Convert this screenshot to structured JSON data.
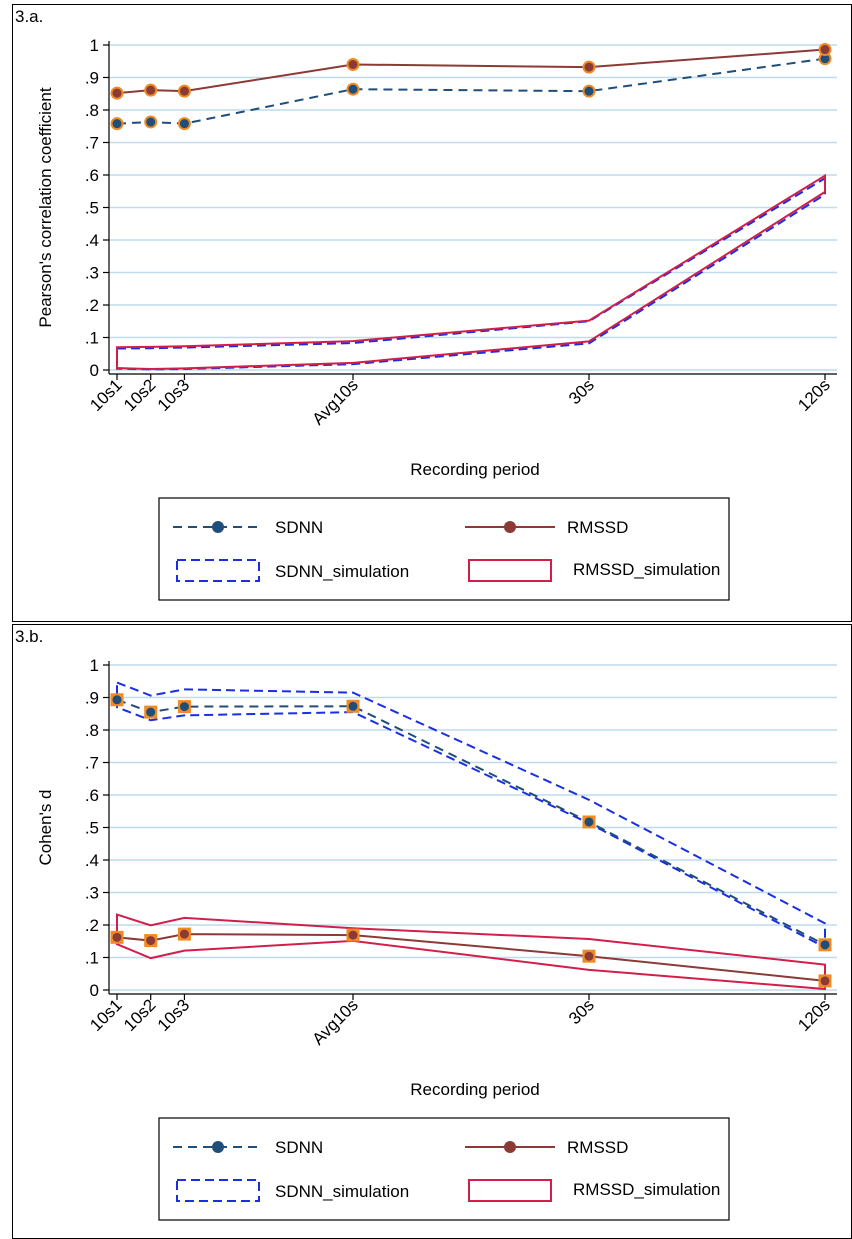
{
  "x_categories": [
    "10s1",
    "10s2",
    "10s3",
    "Avg10s",
    "30s",
    "120s"
  ],
  "x_positions": [
    1,
    2,
    3,
    8,
    15,
    22
  ],
  "colors": {
    "sdnn": "#1f4e79",
    "rmssd": "#8b3a36",
    "sdnn_sim": "#1a2fe0",
    "rmssd_sim": "#d11f4a",
    "marker_fill_orange": "#f08a24",
    "gridline": "#bfdcef"
  },
  "legend": {
    "sdnn": "SDNN",
    "rmssd": "RMSSD",
    "sdnn_sim": "SDNN_simulation",
    "rmssd_sim": "RMSSD_simulation"
  },
  "chart_data": [
    {
      "panel_label": "3.a.",
      "type": "line",
      "xlabel": "Recording period",
      "ylabel": "Pearson's correlation coefficient",
      "ylim": [
        0,
        1
      ],
      "yticks": [
        0,
        0.1,
        0.2,
        0.3,
        0.4,
        0.5,
        0.6,
        0.7,
        0.8,
        0.9,
        1
      ],
      "ytick_labels": [
        "0",
        ".1",
        ".2",
        ".3",
        ".4",
        ".5",
        ".6",
        ".7",
        ".8",
        ".9",
        "1"
      ],
      "grid": true,
      "legend_position": "bottom",
      "series": [
        {
          "name": "SDNN",
          "values": [
            0.758,
            0.763,
            0.758,
            0.864,
            0.858,
            0.958
          ]
        },
        {
          "name": "RMSSD",
          "values": [
            0.852,
            0.861,
            0.858,
            0.94,
            0.932,
            0.986
          ]
        }
      ],
      "bands": [
        {
          "name": "SDNN_simulation",
          "lower": [
            0.004,
            0.002,
            0.003,
            0.018,
            0.082,
            0.54
          ],
          "upper": [
            0.066,
            0.067,
            0.069,
            0.083,
            0.15,
            0.59
          ]
        },
        {
          "name": "RMSSD_simulation",
          "lower": [
            0.006,
            0.003,
            0.005,
            0.022,
            0.088,
            0.548
          ],
          "upper": [
            0.07,
            0.071,
            0.073,
            0.089,
            0.152,
            0.598
          ]
        }
      ]
    },
    {
      "panel_label": "3.b.",
      "type": "line",
      "xlabel": "Recording period",
      "ylabel": "Cohen's d",
      "ylim": [
        0,
        1
      ],
      "yticks": [
        0,
        0.1,
        0.2,
        0.3,
        0.4,
        0.5,
        0.6,
        0.7,
        0.8,
        0.9,
        1
      ],
      "ytick_labels": [
        "0",
        ".1",
        ".2",
        ".3",
        ".4",
        ".5",
        ".6",
        ".7",
        ".8",
        ".9",
        "1"
      ],
      "grid": true,
      "legend_position": "bottom",
      "series": [
        {
          "name": "SDNN",
          "values": [
            0.893,
            0.855,
            0.872,
            0.873,
            0.517,
            0.139
          ]
        },
        {
          "name": "RMSSD",
          "values": [
            0.162,
            0.152,
            0.172,
            0.169,
            0.104,
            0.028
          ]
        }
      ],
      "bands": [
        {
          "name": "SDNN_simulation",
          "lower": [
            0.87,
            0.83,
            0.845,
            0.855,
            0.513,
            0.131
          ],
          "upper": [
            0.946,
            0.906,
            0.925,
            0.915,
            0.585,
            0.205
          ]
        },
        {
          "name": "RMSSD_simulation",
          "lower": [
            0.141,
            0.098,
            0.121,
            0.151,
            0.062,
            0.003
          ],
          "upper": [
            0.232,
            0.199,
            0.222,
            0.19,
            0.157,
            0.078
          ]
        }
      ]
    }
  ]
}
